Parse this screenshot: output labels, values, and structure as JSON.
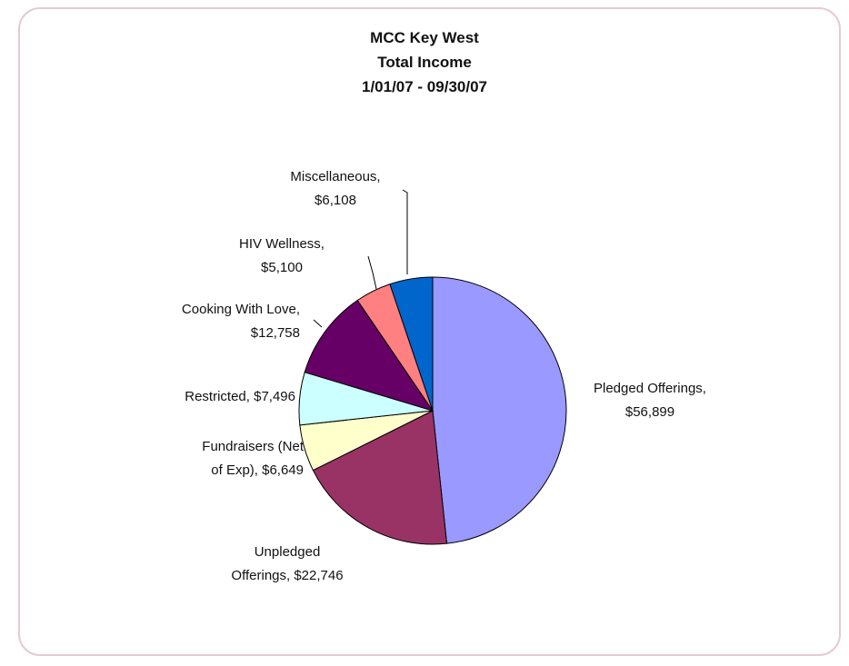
{
  "chart_data": {
    "type": "pie",
    "title": [
      "MCC Key West",
      "Total Income",
      "1/01/07 - 09/30/07"
    ],
    "slices": [
      {
        "name": "Pledged Offerings",
        "value_text": "$56,899",
        "value": 56899,
        "color": "#9999ff"
      },
      {
        "name": "Unpledged Offerings",
        "value_text": "$22,746",
        "value": 22746,
        "color": "#993366"
      },
      {
        "name": "Fundraisers (Net of Exp)",
        "value_text": "$6,649",
        "value": 6649,
        "color": "#ffffcc"
      },
      {
        "name": "Restricted",
        "value_text": "$7,496",
        "value": 7496,
        "color": "#ccffff"
      },
      {
        "name": "Cooking With Love",
        "value_text": "$12,758",
        "value": 12758,
        "color": "#660066"
      },
      {
        "name": "HIV Wellness",
        "value_text": "$5,100",
        "value": 5100,
        "color": "#ff8080"
      },
      {
        "name": "Miscellaneous",
        "value_text": "$6,108",
        "value": 6108,
        "color": "#0066cc"
      }
    ],
    "labels": [
      [
        "Pledged Offerings,",
        "$56,899"
      ],
      [
        "Unpledged",
        "Offerings, $22,746"
      ],
      [
        "Fundraisers (Net",
        "of Exp), $6,649"
      ],
      [
        "Restricted, $7,496"
      ],
      [
        "Cooking With Love,",
        "$12,758"
      ],
      [
        "HIV Wellness,",
        "$5,100"
      ],
      [
        "Miscellaneous,",
        "$6,108"
      ]
    ]
  }
}
